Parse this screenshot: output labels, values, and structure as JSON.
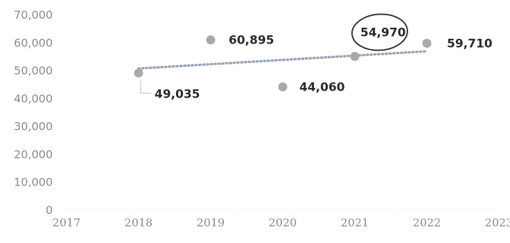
{
  "chart_data": {
    "type": "scatter",
    "x": [
      2018,
      2019,
      2020,
      2021,
      2022
    ],
    "values": [
      49035,
      60895,
      44060,
      54970,
      59710
    ],
    "data_labels": [
      "49,035",
      "60,895",
      "44,060",
      "54,970",
      "59,710"
    ],
    "highlighted_point": 2021,
    "trendline": {
      "type": "linear",
      "style": "dotted"
    },
    "xlim": [
      2017,
      2023
    ],
    "ylim": [
      0,
      70000
    ],
    "x_ticks": [
      "2017",
      "2018",
      "2019",
      "2020",
      "2021",
      "2022",
      "2023"
    ],
    "y_ticks": [
      "0",
      "10,000",
      "20,000",
      "30,000",
      "40,000",
      "50,000",
      "60,000",
      "70,000"
    ],
    "grid": false,
    "colors": {
      "marker": "#a9a9a9",
      "trendline": "#9aa3b5",
      "text": "#2b2b2b",
      "ticks": "#8a8a8a",
      "highlight_ring": "#333333"
    }
  }
}
